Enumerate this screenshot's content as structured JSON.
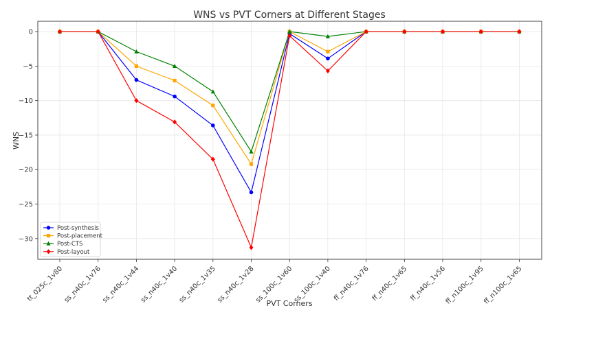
{
  "chart_data": {
    "type": "line",
    "title": "WNS vs PVT Corners at Different Stages",
    "xlabel": "PVT Corners",
    "ylabel": "WNS",
    "categories": [
      "tt_025c_1v80",
      "ss_n40c_1v76",
      "ss_n40c_1v44",
      "ss_n40c_1v40",
      "ss_n40c_1v35",
      "ss_n40c_1v28",
      "ss_100c_1v60",
      "ss_100c_1v40",
      "ff_n40c_1v76",
      "ff_n40c_1v65",
      "ff_n40c_1v56",
      "ff_n100c_1v95",
      "ff_n100c_1v65"
    ],
    "ylim": [
      -33,
      1.5
    ],
    "yticks": [
      0,
      -5,
      -10,
      -15,
      -20,
      -25,
      -30
    ],
    "grid": true,
    "legend_position": "lower-left",
    "series": [
      {
        "name": "Post-synthesis",
        "color": "#0000ff",
        "marker": "circle",
        "values": [
          0,
          0,
          -7.0,
          -9.4,
          -13.6,
          -23.3,
          -0.3,
          -3.9,
          0,
          0,
          0,
          0,
          0
        ]
      },
      {
        "name": "Post-placement",
        "color": "#ffa500",
        "marker": "square",
        "values": [
          0,
          0,
          -5.0,
          -7.1,
          -10.7,
          -19.2,
          0,
          -2.9,
          0,
          0,
          0,
          0,
          0
        ]
      },
      {
        "name": "Post-CTS",
        "color": "#008000",
        "marker": "triangle",
        "values": [
          0,
          0,
          -2.9,
          -5.0,
          -8.7,
          -17.4,
          0,
          -0.7,
          0,
          0,
          0,
          0,
          0
        ]
      },
      {
        "name": "Post-layout",
        "color": "#ff0000",
        "marker": "diamond",
        "values": [
          0,
          0,
          -10.0,
          -13.1,
          -18.5,
          -31.3,
          -0.6,
          -5.7,
          0,
          0,
          0,
          0,
          0
        ]
      }
    ]
  }
}
